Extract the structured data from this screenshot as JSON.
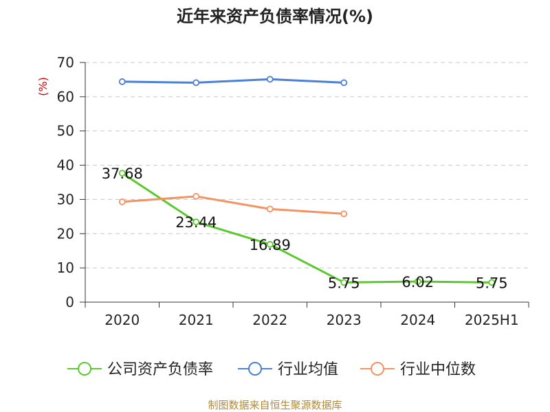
{
  "chart_data": {
    "type": "line",
    "title": "近年来资产负债率情况(%)",
    "unit": "(%)",
    "categories": [
      "2020",
      "2021",
      "2022",
      "2023",
      "2024",
      "2025H1"
    ],
    "ylim": [
      0,
      70
    ],
    "yticks": [
      0,
      10,
      20,
      30,
      40,
      50,
      60,
      70
    ],
    "grid": true,
    "legend_position": "bottom",
    "series": [
      {
        "name": "公司资产负债率",
        "color": "#5ac92d",
        "values": [
          37.68,
          23.44,
          16.89,
          5.75,
          6.02,
          5.75
        ],
        "labels": [
          "37.68",
          "23.44",
          "16.89",
          "5.75",
          "6.02",
          "5.75"
        ]
      },
      {
        "name": "行业均值",
        "color": "#4a7fd6",
        "values": [
          64.4,
          64.1,
          65.1,
          64.1,
          null,
          null
        ]
      },
      {
        "name": "行业中位数",
        "color": "#f39262",
        "values": [
          29.3,
          30.9,
          27.2,
          25.8,
          null,
          null
        ]
      }
    ]
  },
  "source": "制图数据来自恒生聚源数据库"
}
